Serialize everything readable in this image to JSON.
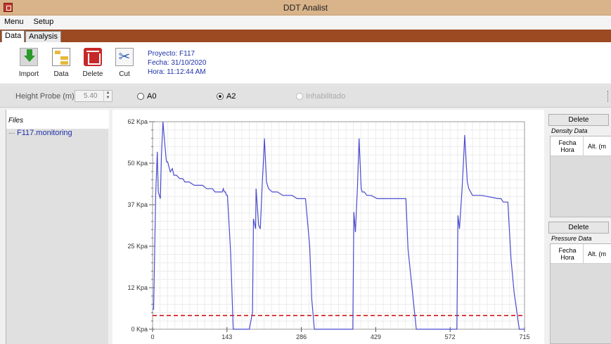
{
  "window": {
    "title": "DDT Analist"
  },
  "menu": {
    "items": [
      "Menu",
      "Setup"
    ]
  },
  "tabs": [
    {
      "label": "Data",
      "active": true
    },
    {
      "label": "Analysis",
      "active": false
    }
  ],
  "toolbar": {
    "import_label": "Import",
    "data_label": "Data",
    "delete_label": "Delete",
    "cut_label": "Cut"
  },
  "project": {
    "proyecto": "Proyecto: F117",
    "fecha": "Fecha: 31/10/2020",
    "hora": "Hora: 11:12:44 AM"
  },
  "options": {
    "height_probe_label": "Height Probe (m):",
    "height_probe_value": "5.40",
    "radio_a0": "A0",
    "radio_a2": "A2",
    "radio_inhabilitado": "Inhabilitado",
    "selected": "A2"
  },
  "files": {
    "header": "Files",
    "items": [
      "F117.monitoring"
    ]
  },
  "density": {
    "delete_label": "Delete",
    "title": "Density Data",
    "col1_line1": "Fecha",
    "col1_line2": "Hora",
    "col2": "Alt. (m"
  },
  "pressure": {
    "delete_label": "Delete",
    "title": "Pressure Data",
    "col1_line1": "Fecha",
    "col1_line2": "Hora",
    "col2": "Alt. (m"
  },
  "chart_data": {
    "type": "line",
    "y_ticks": [
      "0 Kpa",
      "12 Kpa",
      "25 Kpa",
      "37 Kpa",
      "50 Kpa",
      "62 Kpa"
    ],
    "y_tick_values": [
      0,
      12.4,
      24.8,
      37.2,
      49.6,
      62
    ],
    "x_ticks": [
      "0",
      "143",
      "286",
      "429",
      "572",
      "715"
    ],
    "x_tick_values": [
      0,
      143,
      286,
      429,
      572,
      715
    ],
    "xlim": [
      0,
      715
    ],
    "ylim": [
      0,
      62
    ],
    "grid": true,
    "line_color": "#4b4bd0",
    "threshold": {
      "value": 4.1,
      "color": "#cc0000",
      "style": "dashed"
    },
    "series": [
      {
        "x": [
          0,
          2,
          6,
          9,
          11,
          13,
          15,
          17,
          20,
          22,
          26,
          27,
          29,
          34,
          38,
          41,
          46,
          52,
          58,
          62,
          70,
          80,
          88,
          96,
          104,
          110,
          115,
          120,
          125,
          130,
          134,
          136,
          138,
          140,
          142,
          144,
          150,
          155,
          186,
          192,
          194,
          198,
          199,
          204,
          207,
          211,
          213,
          215,
          219,
          223,
          230,
          240,
          250,
          256,
          268,
          278,
          294,
          302,
          306,
          311,
          317,
          385,
          387,
          390,
          394,
          397,
          401,
          403,
          407,
          412,
          420,
          432,
          442,
          448,
          452,
          487,
          491,
          507,
          580,
          585,
          587,
          590,
          595,
          598,
          600,
          605,
          608,
          615,
          632,
          665,
          670,
          674,
          683,
          689,
          695,
          705,
          715
        ],
        "y": [
          6,
          6,
          40,
          53,
          41,
          40,
          39,
          52,
          62,
          58,
          51,
          50,
          50,
          47,
          48,
          46,
          46,
          45,
          45,
          44,
          44,
          43,
          43,
          43,
          42,
          42,
          42,
          41,
          41,
          41,
          41,
          42,
          41,
          41,
          40,
          40,
          23,
          0,
          0,
          5,
          33,
          30,
          42,
          31,
          30,
          44,
          50,
          57,
          44,
          42,
          41,
          41,
          40,
          40,
          40,
          39,
          39,
          25,
          9,
          0,
          0,
          0,
          35,
          29,
          43,
          57,
          42,
          41,
          41,
          40,
          40,
          39,
          39,
          39,
          39,
          39,
          24,
          0,
          0,
          0,
          34,
          30,
          42,
          51,
          58,
          44,
          42,
          40,
          40,
          39,
          39,
          38,
          38,
          21,
          11,
          0,
          0
        ]
      }
    ]
  }
}
